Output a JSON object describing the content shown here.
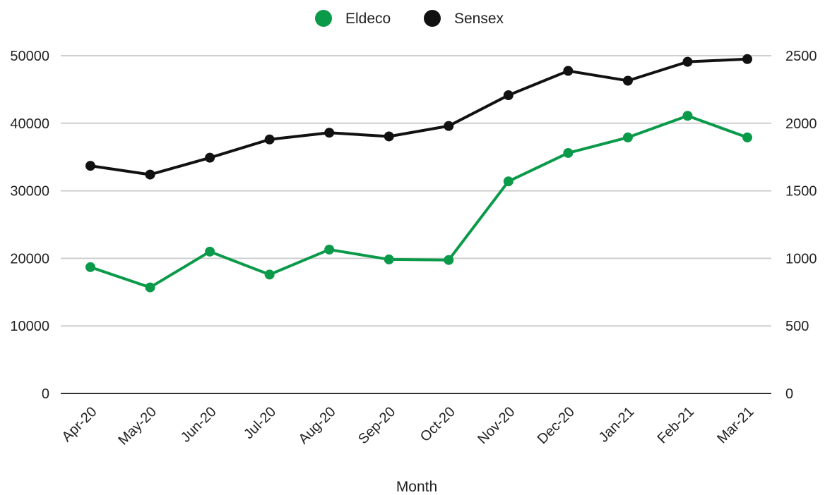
{
  "chart_data": {
    "type": "line",
    "title": "",
    "xlabel": "Month",
    "ylabel": "",
    "categories": [
      "Apr-20",
      "May-20",
      "Jun-20",
      "Jul-20",
      "Aug-20",
      "Sep-20",
      "Oct-20",
      "Nov-20",
      "Dec-20",
      "Jan-21",
      "Feb-21",
      "Mar-21"
    ],
    "y_left": {
      "min": 0,
      "max": 50000,
      "ticks": [
        0,
        10000,
        20000,
        30000,
        40000,
        50000
      ]
    },
    "y_right": {
      "min": 0,
      "max": 2500,
      "ticks": [
        0,
        500,
        1000,
        1500,
        2000,
        2500
      ]
    },
    "grid": true,
    "legend_position": "top-center",
    "series": [
      {
        "name": "Eldeco",
        "axis": "right",
        "color": "#0a9a4a",
        "values": [
          935,
          785,
          1050,
          880,
          1065,
          992,
          988,
          1570,
          1780,
          1895,
          2055,
          1895
        ]
      },
      {
        "name": "Sensex",
        "axis": "left",
        "color": "#111111",
        "values": [
          33700,
          32400,
          34900,
          37600,
          38600,
          38050,
          39600,
          44150,
          47750,
          46300,
          49100,
          49500
        ]
      }
    ]
  }
}
